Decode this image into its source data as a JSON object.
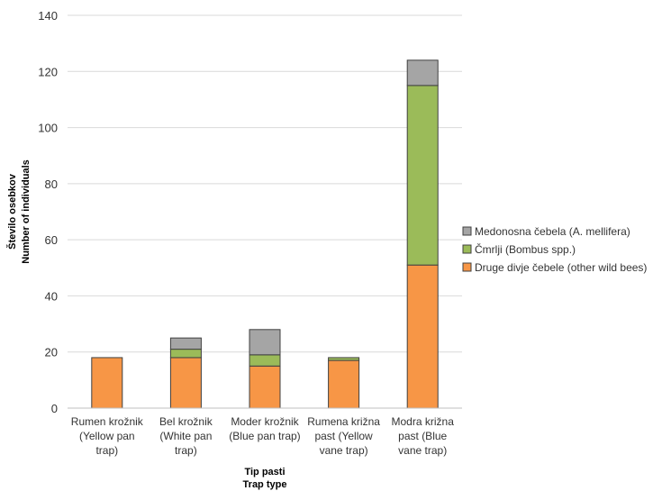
{
  "chart_data": {
    "type": "bar",
    "stacked": true,
    "categories": [
      [
        "Rumen krožnik",
        "(Yellow pan",
        "trap)"
      ],
      [
        "Bel krožnik",
        "(White pan",
        "trap)"
      ],
      [
        "Moder krožnik",
        "(Blue pan trap)"
      ],
      [
        "Rumena križna",
        "past (Yellow",
        "vane trap)"
      ],
      [
        "Modra križna",
        "past (Blue",
        "vane trap)"
      ]
    ],
    "series": [
      {
        "name": "Druge divje čebele (other wild bees)",
        "color": "#f79646",
        "values": [
          18,
          18,
          15,
          17,
          51
        ]
      },
      {
        "name": "Čmrlji (Bombus spp.)",
        "color": "#9bbb59",
        "values": [
          0,
          3,
          4,
          1,
          64
        ]
      },
      {
        "name": "Medonosna čebela (A. mellifera)",
        "color": "#a5a5a5",
        "values": [
          0,
          4,
          9,
          0,
          9
        ]
      }
    ],
    "legend_order": [
      2,
      1,
      0
    ],
    "legend_position": "right",
    "ylabel": [
      "Število osebkov",
      "Number of individuals"
    ],
    "xlabel": [
      "Tip pasti",
      "Trap type"
    ],
    "ylim": [
      0,
      140
    ],
    "yticks": [
      0,
      20,
      40,
      60,
      80,
      100,
      120,
      140
    ],
    "grid": true
  }
}
